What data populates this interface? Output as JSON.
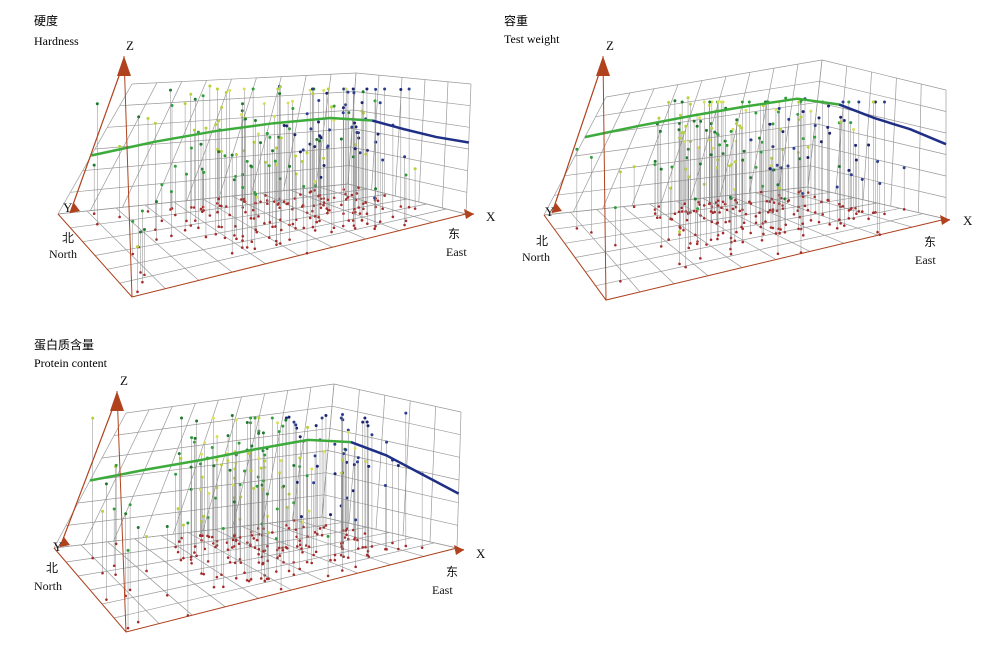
{
  "axes": {
    "x": "X",
    "y": "Y",
    "z": "Z"
  },
  "directions": {
    "north_cn": "北",
    "north_en": "North",
    "east_cn": "东",
    "east_en": "East"
  },
  "colors": {
    "grid": "#9a9a9a",
    "axis_arrow": "#b0431e",
    "ground_point": "#a52a2a",
    "stem": "#8c8c8c",
    "trend_west": "#3cab3c",
    "trend_east": "#1f2f86",
    "point_palette": [
      "#1f7a2e",
      "#2f9e3a",
      "#b7d13a",
      "#d8e05a",
      "#2a3d8f",
      "#1c2470"
    ]
  },
  "charts": [
    {
      "title_cn": "硬度",
      "title_en": "Hardness"
    },
    {
      "title_cn": "容重",
      "title_en": "Test weight"
    },
    {
      "title_cn": "蛋白质含量",
      "title_en": "Protein content"
    }
  ],
  "chart_data": [
    {
      "type": "scatter",
      "title": "硬度 Hardness",
      "xlabel": "X",
      "ylabel": "Y",
      "zlabel": "Z",
      "annotations": [
        "北 North",
        "东 East"
      ],
      "trend_west_to_east": [
        0.45,
        0.52,
        0.57,
        0.6,
        0.61,
        0.6,
        0.57,
        0.55,
        0.55
      ]
    },
    {
      "type": "scatter",
      "title": "容重 Test weight",
      "xlabel": "X",
      "ylabel": "Y",
      "zlabel": "Z",
      "annotations": [
        "北 North",
        "东 East"
      ],
      "trend_west_to_east": [
        0.66,
        0.69,
        0.71,
        0.72,
        0.72,
        0.69,
        0.65,
        0.63,
        0.58
      ]
    },
    {
      "type": "scatter",
      "title": "蛋白质含量 Protein content",
      "xlabel": "X",
      "ylabel": "Y",
      "zlabel": "Z",
      "annotations": [
        "北 North",
        "东 East"
      ],
      "trend_west_to_east": [
        0.5,
        0.53,
        0.55,
        0.58,
        0.6,
        0.6,
        0.56,
        0.48,
        0.4
      ]
    }
  ]
}
